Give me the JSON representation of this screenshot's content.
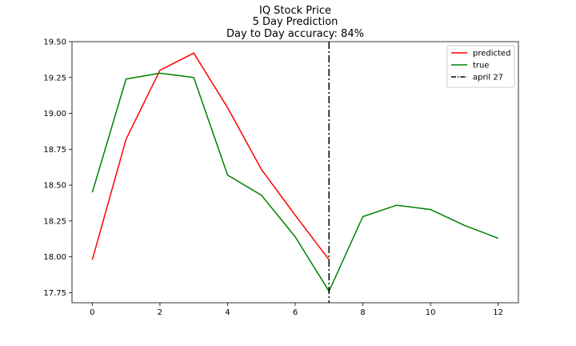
{
  "chart_data": {
    "type": "line",
    "title_lines": [
      "IQ Stock Price",
      "5 Day Prediction",
      "Day to Day accuracy: 84%"
    ],
    "xlabel": "",
    "ylabel": "",
    "xlim": [
      -0.6,
      12.6
    ],
    "ylim": [
      17.68,
      19.5
    ],
    "xticks": [
      0,
      2,
      4,
      6,
      8,
      10,
      12
    ],
    "yticks": [
      17.75,
      18.0,
      18.25,
      18.5,
      18.75,
      19.0,
      19.25,
      19.5
    ],
    "ytick_labels": [
      "17.75",
      "18.00",
      "18.25",
      "18.50",
      "18.75",
      "19.00",
      "19.25",
      "19.50"
    ],
    "legend_position": "top-right",
    "series": [
      {
        "name": "predicted",
        "color": "#ff0000",
        "style": "solid",
        "x": [
          0,
          1,
          2,
          3,
          4,
          5,
          6,
          7
        ],
        "y": [
          17.98,
          18.82,
          19.3,
          19.42,
          19.04,
          18.61,
          18.29,
          17.98
        ]
      },
      {
        "name": "true",
        "color": "#008000",
        "style": "solid",
        "x": [
          0,
          1,
          2,
          3,
          4,
          5,
          6,
          7,
          8,
          9,
          10,
          11,
          12
        ],
        "y": [
          18.45,
          19.24,
          19.28,
          19.25,
          18.57,
          18.43,
          18.14,
          17.76,
          18.28,
          18.36,
          18.33,
          18.22,
          18.13
        ]
      }
    ],
    "vlines": [
      {
        "name": "april 27",
        "x": 7,
        "color": "#000000",
        "style": "dashdot"
      }
    ]
  }
}
